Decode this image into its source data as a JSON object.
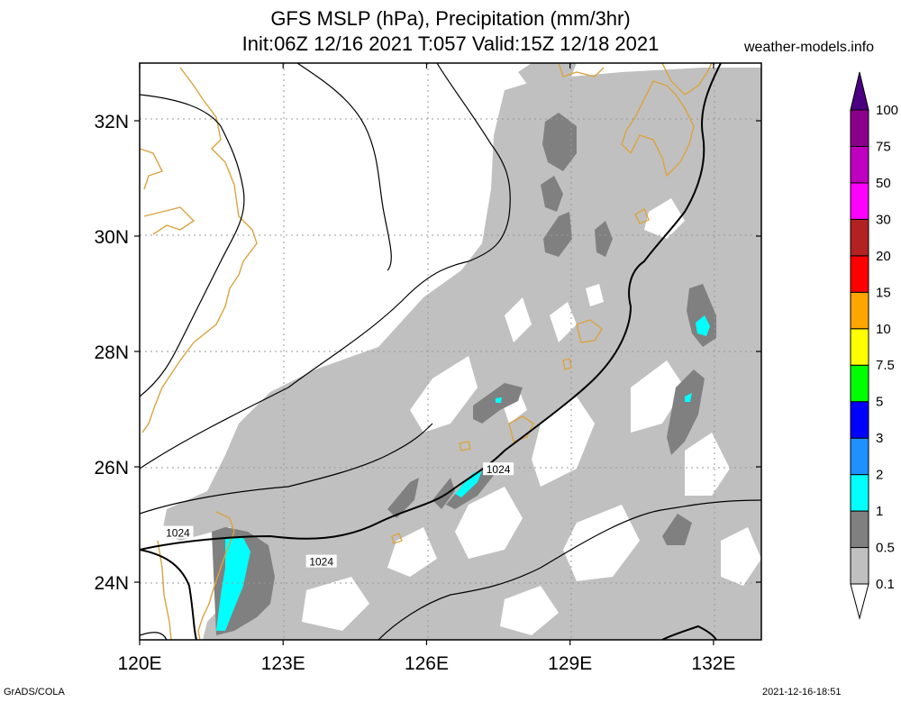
{
  "title": {
    "line1": "GFS MSLP (hPa), Precipitation (mm/3hr)",
    "line2": "Init:06Z 12/16 2021 T:057 Valid:15Z 12/18 2021"
  },
  "site": "weather-models.info",
  "map": {
    "lon_range": [
      120,
      133
    ],
    "lat_range": [
      23,
      33
    ],
    "lon_ticks": [
      {
        "v": 120,
        "label": "120E"
      },
      {
        "v": 123,
        "label": "123E"
      },
      {
        "v": 126,
        "label": "126E"
      },
      {
        "v": 129,
        "label": "129E"
      },
      {
        "v": 132,
        "label": "132E"
      }
    ],
    "lat_ticks": [
      {
        "v": 24,
        "label": "24N"
      },
      {
        "v": 26,
        "label": "26N"
      },
      {
        "v": 28,
        "label": "28N"
      },
      {
        "v": 30,
        "label": "30N"
      },
      {
        "v": 32,
        "label": "32N"
      }
    ],
    "isobar_labels": [
      {
        "text": "1024",
        "lon": 127.5,
        "lat": 25.95
      },
      {
        "text": "1024",
        "lon": 120.8,
        "lat": 24.85
      },
      {
        "text": "1024",
        "lon": 123.8,
        "lat": 24.35
      }
    ]
  },
  "colorbar": {
    "levels": [
      "0.1",
      "0.5",
      "1",
      "2",
      "3",
      "5",
      "7.5",
      "10",
      "15",
      "20",
      "30",
      "50",
      "75",
      "100"
    ],
    "colors": [
      "#ffffff",
      "#c0c0c0",
      "#808080",
      "#00ffff",
      "#1e90ff",
      "#0000ff",
      "#00ff00",
      "#ffff00",
      "#ffa500",
      "#ff0000",
      "#b22222",
      "#ff00ff",
      "#c000c0",
      "#8b008b",
      "#4b0082"
    ]
  },
  "colors": {
    "light_precip": "#c0c0c0",
    "moderate_precip": "#808080",
    "heavy_precip": "#00ffff",
    "coast": "#d9a441",
    "isobar": "#000000",
    "grid": "#999999"
  },
  "footer": {
    "left": "GrADS/COLA",
    "right": "2021-12-16-18:51"
  }
}
